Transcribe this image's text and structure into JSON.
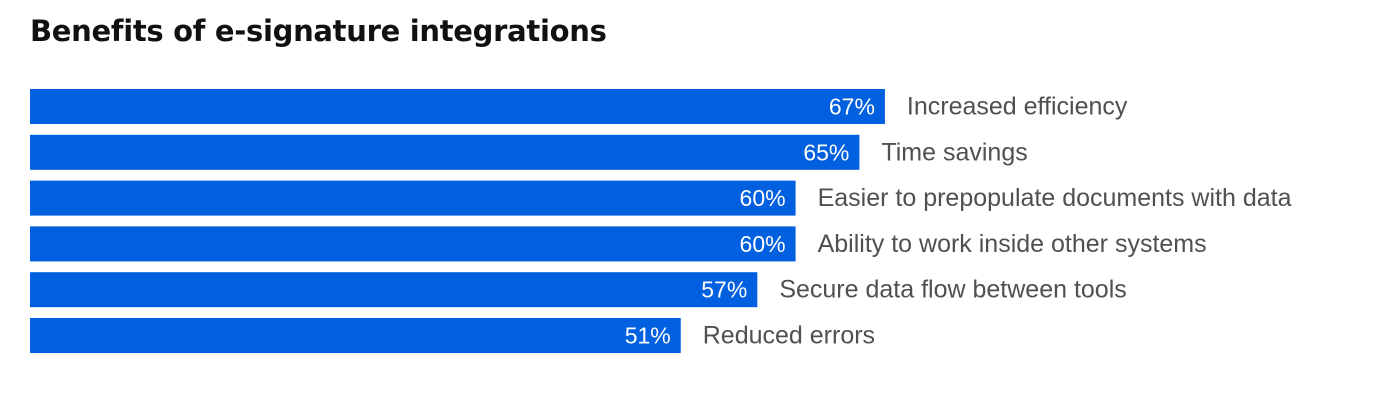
{
  "chart_data": {
    "type": "bar",
    "orientation": "horizontal",
    "title": "Benefits of e-signature integrations",
    "categories": [
      "Increased efficiency",
      "Time savings",
      "Easier to prepopulate documents with data",
      "Ability to work inside other systems",
      "Secure data flow between tools",
      "Reduced errors"
    ],
    "values": [
      67,
      65,
      60,
      60,
      57,
      51
    ],
    "value_labels": [
      "67%",
      "65%",
      "60%",
      "60%",
      "57%",
      "51%"
    ],
    "unit": "%",
    "xlim": [
      0,
      100
    ],
    "grid": false,
    "legend": "none",
    "colors": {
      "bar": "#0160DF",
      "value_text": "#FFFFFF",
      "category_text": "#505050",
      "title_text": "#111111"
    }
  }
}
